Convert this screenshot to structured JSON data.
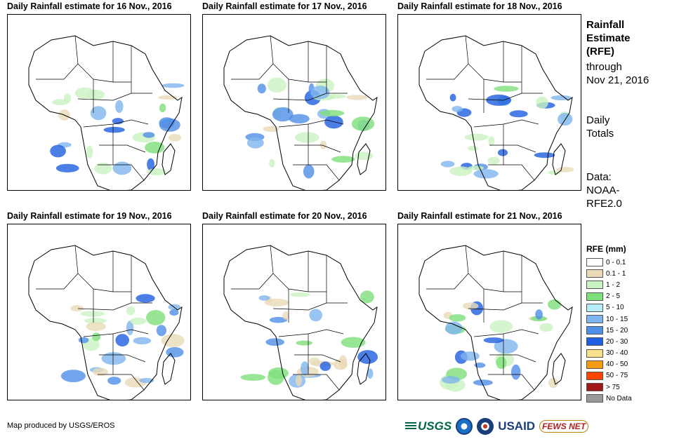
{
  "panels": [
    {
      "title": "Daily Rainfall estimate for 16 Nov., 2016"
    },
    {
      "title": "Daily Rainfall estimate for 17 Nov., 2016"
    },
    {
      "title": "Daily Rainfall estimate for 18 Nov., 2016"
    },
    {
      "title": "Daily Rainfall estimate for 19 Nov., 2016"
    },
    {
      "title": "Daily Rainfall estimate for 20 Nov., 2016"
    },
    {
      "title": "Daily Rainfall estimate for 21 Nov., 2016"
    }
  ],
  "side": {
    "title_lines": [
      "Rainfall",
      "Estimate",
      "(RFE)"
    ],
    "through_lines": [
      "through",
      "Nov 21, 2016"
    ],
    "totals_lines": [
      "Daily",
      "Totals"
    ],
    "data_lines": [
      "Data:",
      "NOAA-",
      "RFE2.0"
    ]
  },
  "legend": {
    "title": "RFE (mm)",
    "items": [
      {
        "label": "0 - 0.1",
        "color": "#ffffff"
      },
      {
        "label": "0.1 - 1",
        "color": "#e9d9b8"
      },
      {
        "label": "1 - 2",
        "color": "#c9f3c0"
      },
      {
        "label": "2 - 5",
        "color": "#7ee07a"
      },
      {
        "label": "5 - 10",
        "color": "#b7ecf6"
      },
      {
        "label": "10 - 15",
        "color": "#7fb5ee"
      },
      {
        "label": "15 - 20",
        "color": "#4f8fe6"
      },
      {
        "label": "20 - 30",
        "color": "#1f5fe0"
      },
      {
        "label": "30 - 40",
        "color": "#f6e08a"
      },
      {
        "label": "40 - 50",
        "color": "#f39c12"
      },
      {
        "label": "50 - 75",
        "color": "#ff4500"
      },
      {
        "label": "> 75",
        "color": "#a01818"
      },
      {
        "label": "No Data",
        "color": "#999999"
      }
    ]
  },
  "footer": {
    "credit": "Map produced by USGS/EROS",
    "logos": {
      "usgs": "USGS",
      "usaid": "USAID",
      "fews": "FEWS NET"
    }
  }
}
